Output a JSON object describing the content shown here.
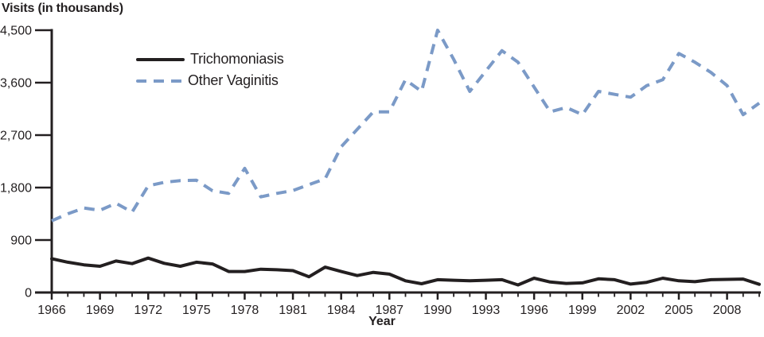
{
  "colors": {
    "ink": "#231f20",
    "accent_blue": "#7b9ac7",
    "background": "#ffffff"
  },
  "axis": {
    "x_range": [
      1966,
      2010
    ],
    "y_range": [
      0,
      4500
    ],
    "y_ticks": [
      {
        "value": 0,
        "label": "0"
      },
      {
        "value": 900,
        "label": "900"
      },
      {
        "value": 1800,
        "label": "1,800"
      },
      {
        "value": 2700,
        "label": "2,700"
      },
      {
        "value": 3600,
        "label": "3,600"
      },
      {
        "value": 4500,
        "label": "4,500"
      }
    ],
    "x_major_years": [
      1966,
      1969,
      1972,
      1975,
      1978,
      1981,
      1984,
      1987,
      1990,
      1993,
      1996,
      1999,
      2002,
      2005,
      2008
    ]
  },
  "chart_data": {
    "type": "line",
    "title": "Visits (in thousands)",
    "xlabel": "Year",
    "ylabel": "Visits (in thousands)",
    "ylim": [
      0,
      4500
    ],
    "grid": false,
    "legend_position": "top-left-inside",
    "x": [
      1966,
      1967,
      1968,
      1969,
      1970,
      1971,
      1972,
      1973,
      1974,
      1975,
      1976,
      1977,
      1978,
      1979,
      1980,
      1981,
      1982,
      1983,
      1984,
      1985,
      1986,
      1987,
      1988,
      1989,
      1990,
      1991,
      1992,
      1993,
      1994,
      1995,
      1996,
      1997,
      1998,
      1999,
      2000,
      2001,
      2002,
      2003,
      2004,
      2005,
      2006,
      2007,
      2008,
      2009,
      2010
    ],
    "series": [
      {
        "id": "trichomoniasis",
        "name": "Trichomoniasis",
        "line_style": "solid",
        "color": "#231f20",
        "values": [
          580,
          520,
          475,
          450,
          540,
          495,
          590,
          500,
          450,
          520,
          490,
          360,
          360,
          400,
          390,
          375,
          270,
          435,
          360,
          290,
          345,
          315,
          200,
          150,
          220,
          210,
          200,
          210,
          220,
          130,
          245,
          180,
          155,
          165,
          235,
          220,
          145,
          175,
          245,
          200,
          185,
          220,
          225,
          230,
          140
        ]
      },
      {
        "id": "other-vaginitis",
        "name": "Other Vaginitis",
        "line_style": "dashed",
        "color": "#7b9ac7",
        "values": [
          1230,
          1350,
          1450,
          1410,
          1530,
          1380,
          1830,
          1890,
          1920,
          1925,
          1745,
          1700,
          2130,
          1640,
          1700,
          1750,
          1850,
          1950,
          2500,
          2800,
          3100,
          3100,
          3650,
          3450,
          4500,
          4000,
          3450,
          3800,
          4150,
          3950,
          3525,
          3100,
          3175,
          3050,
          3450,
          3400,
          3350,
          3550,
          3650,
          4100,
          3950,
          3775,
          3550,
          3050,
          3250
        ]
      }
    ]
  }
}
